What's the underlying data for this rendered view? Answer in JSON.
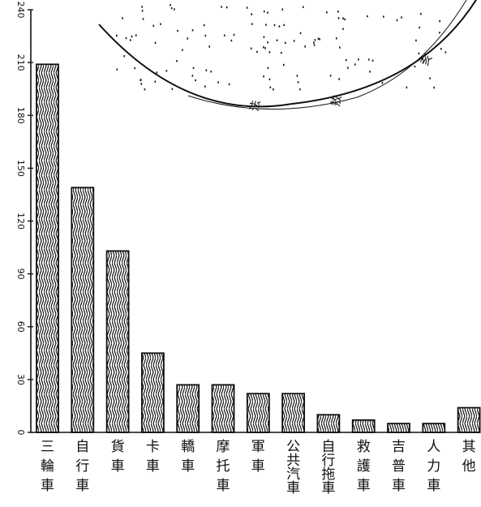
{
  "chart_data": {
    "type": "bar",
    "title": "",
    "xlabel": "",
    "ylabel": "",
    "ylim": [
      0,
      240
    ],
    "yticks": [
      "0",
      "30",
      "60",
      "90",
      "120",
      "150",
      "180",
      "210",
      "240"
    ],
    "categories": [
      "三輪車",
      "自行車",
      "貨車",
      "卡車",
      "轎車",
      "摩托車",
      "軍車",
      "公共汽車",
      "自行拖車",
      "救護車",
      "吉普車",
      "人力車",
      "其他"
    ],
    "values": [
      209,
      139,
      103,
      45,
      27,
      27,
      22,
      22,
      10,
      7,
      5,
      5,
      14
    ],
    "grid": false,
    "legend": "none"
  },
  "inset": {
    "labels": [
      "法",
      "敖",
      "亥"
    ]
  },
  "colors": {
    "ink": "#111111",
    "paper": "#ffffff"
  }
}
